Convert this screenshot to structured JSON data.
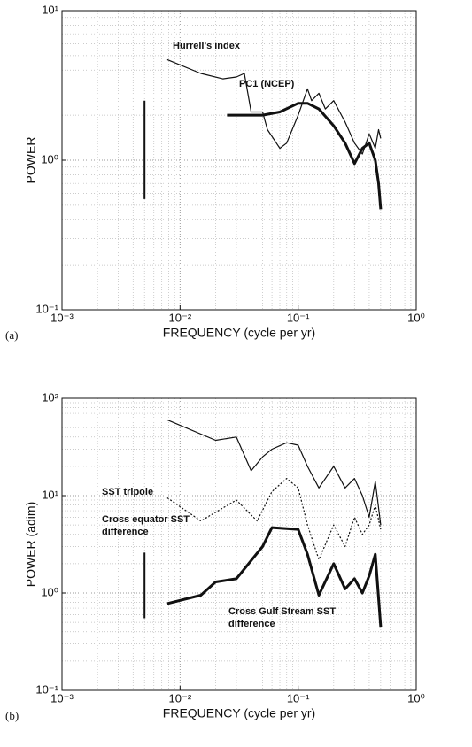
{
  "chart_data": [
    {
      "type": "line",
      "panel_label": "(a)",
      "x_label": "FREQUENCY (cycle per yr)",
      "y_label": "POWER",
      "log_x": true,
      "log_y": true,
      "grid": true,
      "minor_grid": true,
      "xlim": [
        0.001,
        1
      ],
      "ylim": [
        0.1,
        10
      ],
      "xticks": [
        {
          "value": 0.001,
          "label": "10⁻³"
        },
        {
          "value": 0.01,
          "label": "10⁻²"
        },
        {
          "value": 0.1,
          "label": "10⁻¹"
        },
        {
          "value": 1,
          "label": "10⁰"
        }
      ],
      "yticks": [
        {
          "value": 0.1,
          "label": "10⁻¹"
        },
        {
          "value": 1,
          "label": "10⁰"
        },
        {
          "value": 10,
          "label": "10¹"
        }
      ],
      "error_bar": {
        "x": 0.005,
        "low": 0.55,
        "high": 2.5
      },
      "series": [
        {
          "name": "Hurrell's index",
          "color": "#111111",
          "line_width": 1.2,
          "dash": false,
          "x": [
            0.0078,
            0.015,
            0.023,
            0.03,
            0.035,
            0.04,
            0.05,
            0.055,
            0.07,
            0.08,
            0.1,
            0.12,
            0.13,
            0.15,
            0.17,
            0.2,
            0.25,
            0.3,
            0.35,
            0.4,
            0.45,
            0.48,
            0.5
          ],
          "values": [
            4.7,
            3.8,
            3.5,
            3.6,
            3.8,
            2.1,
            2.1,
            1.6,
            1.2,
            1.3,
            2.0,
            3.0,
            2.5,
            2.8,
            2.2,
            2.5,
            1.8,
            1.3,
            1.1,
            1.5,
            1.2,
            1.6,
            1.4
          ]
        },
        {
          "name": "PC1 (NCEP)",
          "color": "#111111",
          "line_width": 3,
          "dash": false,
          "x": [
            0.025,
            0.05,
            0.07,
            0.1,
            0.12,
            0.15,
            0.2,
            0.25,
            0.3,
            0.35,
            0.4,
            0.45,
            0.48,
            0.5
          ],
          "values": [
            2.0,
            2.0,
            2.1,
            2.4,
            2.4,
            2.2,
            1.7,
            1.3,
            0.95,
            1.2,
            1.3,
            1.0,
            0.7,
            0.47
          ]
        }
      ]
    },
    {
      "type": "line",
      "panel_label": "(b)",
      "x_label": "FREQUENCY (cycle per yr)",
      "y_label": "POWER (adim)",
      "log_x": true,
      "log_y": true,
      "grid": true,
      "minor_grid": true,
      "xlim": [
        0.001,
        1
      ],
      "ylim": [
        0.1,
        100
      ],
      "xticks": [
        {
          "value": 0.001,
          "label": "10⁻³"
        },
        {
          "value": 0.01,
          "label": "10⁻²"
        },
        {
          "value": 0.1,
          "label": "10⁻¹"
        },
        {
          "value": 1,
          "label": "10⁰"
        }
      ],
      "yticks": [
        {
          "value": 0.1,
          "label": "10⁻¹"
        },
        {
          "value": 1,
          "label": "10⁰"
        },
        {
          "value": 10,
          "label": "10¹"
        },
        {
          "value": 100,
          "label": "10²"
        }
      ],
      "error_bar": {
        "x": 0.005,
        "low": 0.55,
        "high": 2.6
      },
      "series": [
        {
          "name": "SST tripole",
          "color": "#111111",
          "line_width": 1.2,
          "dash": false,
          "x": [
            0.0078,
            0.02,
            0.03,
            0.04,
            0.05,
            0.06,
            0.08,
            0.1,
            0.12,
            0.15,
            0.2,
            0.25,
            0.3,
            0.35,
            0.4,
            0.45,
            0.5
          ],
          "values": [
            60,
            37,
            40,
            18,
            25,
            30,
            35,
            33,
            20,
            12,
            20,
            12,
            15,
            10,
            6,
            14,
            5
          ]
        },
        {
          "name": "Cross equator SST difference",
          "color": "#111111",
          "line_width": 1.2,
          "dash": true,
          "x": [
            0.0078,
            0.015,
            0.03,
            0.045,
            0.06,
            0.08,
            0.1,
            0.12,
            0.15,
            0.2,
            0.25,
            0.3,
            0.35,
            0.4,
            0.45,
            0.5
          ],
          "values": [
            9.5,
            5.5,
            9,
            5.5,
            11,
            15,
            12,
            5,
            2.2,
            5,
            3,
            6,
            4,
            5,
            8,
            4.5
          ]
        },
        {
          "name": "Cross Gulf Stream SST difference",
          "color": "#111111",
          "line_width": 3,
          "dash": false,
          "x": [
            0.0078,
            0.015,
            0.02,
            0.03,
            0.05,
            0.06,
            0.1,
            0.12,
            0.15,
            0.2,
            0.25,
            0.3,
            0.35,
            0.4,
            0.45,
            0.5
          ],
          "values": [
            0.78,
            0.95,
            1.3,
            1.4,
            3,
            4.7,
            4.5,
            2.5,
            0.95,
            2.0,
            1.1,
            1.4,
            1.0,
            1.5,
            2.5,
            0.45
          ]
        }
      ]
    }
  ]
}
